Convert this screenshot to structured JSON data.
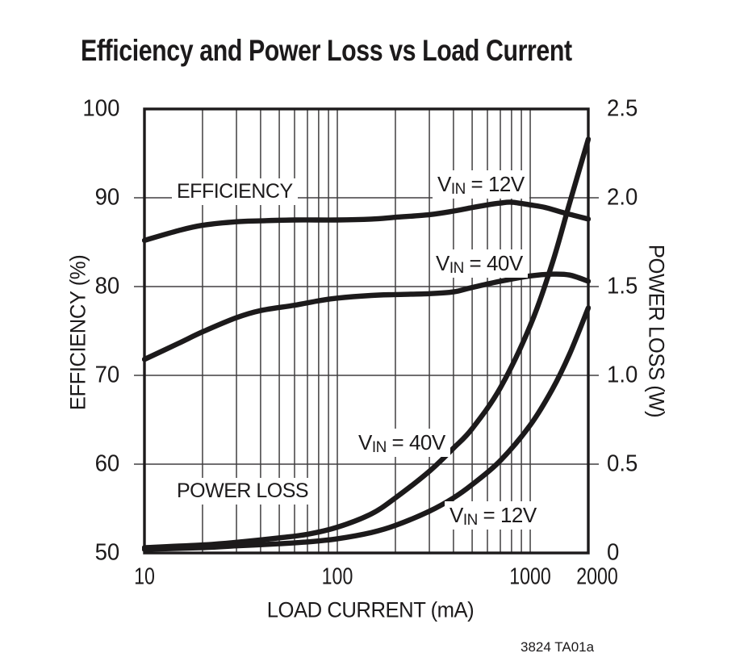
{
  "title": "Efficiency and Power Loss vs Load Current",
  "note": "3824 TA01a",
  "axes": {
    "x": {
      "label": "LOAD CURRENT (mA)",
      "scale": "log",
      "min": 10,
      "max": 2000,
      "tick_values": [
        10,
        100,
        1000,
        2000
      ],
      "tick_labels": [
        "10",
        "100",
        "1000",
        "2000"
      ]
    },
    "y_left": {
      "label": "EFFICIENCY (%)",
      "min": 50,
      "max": 100,
      "tick_values": [
        100,
        90,
        80,
        70,
        60,
        50
      ],
      "tick_labels": [
        "100",
        "90",
        "80",
        "70",
        "60",
        "50"
      ]
    },
    "y_right": {
      "label": "POWER LOSS (W)",
      "min": 0,
      "max": 2.5,
      "tick_values": [
        2.5,
        2.0,
        1.5,
        1.0,
        0.5,
        0
      ],
      "tick_labels": [
        "2.5",
        "2.0",
        "1.5",
        "1.0",
        "0.5",
        "0"
      ]
    }
  },
  "group_labels": {
    "efficiency": "EFFICIENCY",
    "power_loss": "POWER LOSS"
  },
  "curve_labels": {
    "eff_12v": {
      "base": "V",
      "sub": "IN",
      "rest": " = 12V"
    },
    "eff_40v": {
      "base": "V",
      "sub": "IN",
      "rest": " = 40V"
    },
    "loss_40v": {
      "base": "V",
      "sub": "IN",
      "rest": " = 40V"
    },
    "loss_12v": {
      "base": "V",
      "sub": "IN",
      "rest": " = 12V"
    }
  },
  "chart_data": {
    "type": "line",
    "title": "Efficiency and Power Loss vs Load Current",
    "xlabel": "LOAD CURRENT (mA)",
    "ylabel_left": "EFFICIENCY (%)",
    "ylabel_right": "POWER LOSS (W)",
    "x_scale": "log",
    "x_range": [
      10,
      2000
    ],
    "y_left_range": [
      50,
      100
    ],
    "y_right_range": [
      0,
      2.5
    ],
    "grid": true,
    "legend": "inline-labels",
    "series": [
      {
        "name": "Efficiency VIN = 12V",
        "axis": "left",
        "unit": "%",
        "x": [
          10,
          15,
          20,
          30,
          40,
          60,
          100,
          150,
          200,
          300,
          400,
          500,
          600,
          700,
          800,
          1000,
          1200,
          1500,
          2000
        ],
        "y": [
          85.2,
          86.3,
          86.9,
          87.3,
          87.4,
          87.5,
          87.5,
          87.6,
          87.8,
          88.1,
          88.5,
          88.9,
          89.2,
          89.4,
          89.5,
          89.2,
          88.9,
          88.3,
          87.6
        ]
      },
      {
        "name": "Efficiency VIN = 40V",
        "axis": "left",
        "unit": "%",
        "x": [
          10,
          15,
          20,
          30,
          40,
          60,
          80,
          100,
          150,
          200,
          300,
          400,
          500,
          700,
          1000,
          1300,
          1600,
          2000
        ],
        "y": [
          71.8,
          73.6,
          74.9,
          76.5,
          77.3,
          77.9,
          78.4,
          78.7,
          79.0,
          79.1,
          79.2,
          79.4,
          79.9,
          80.6,
          81.2,
          81.4,
          81.3,
          80.6
        ]
      },
      {
        "name": "Power Loss VIN = 40V",
        "axis": "right",
        "unit": "W",
        "x": [
          10,
          20,
          30,
          50,
          70,
          100,
          150,
          200,
          300,
          400,
          500,
          700,
          1000,
          1300,
          1600,
          2000
        ],
        "y": [
          0.03,
          0.045,
          0.06,
          0.085,
          0.105,
          0.145,
          0.22,
          0.31,
          0.46,
          0.59,
          0.7,
          0.93,
          1.28,
          1.63,
          1.97,
          2.33
        ]
      },
      {
        "name": "Power Loss VIN = 12V",
        "axis": "right",
        "unit": "W",
        "x": [
          10,
          20,
          30,
          50,
          70,
          100,
          150,
          200,
          300,
          400,
          500,
          700,
          1000,
          1300,
          1600,
          2000
        ],
        "y": [
          0.02,
          0.03,
          0.04,
          0.052,
          0.062,
          0.08,
          0.115,
          0.155,
          0.235,
          0.31,
          0.385,
          0.52,
          0.72,
          0.92,
          1.12,
          1.38
        ]
      }
    ]
  },
  "colors": {
    "curve": "#1c1a1b",
    "grid": "#413f40",
    "text": "#1c1a1b",
    "background": "#ffffff"
  }
}
